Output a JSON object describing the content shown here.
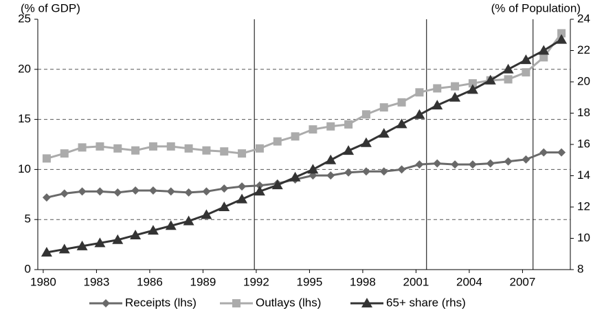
{
  "chart_data": {
    "type": "line",
    "y_label": "(% of GDP)",
    "y2_label": "(% of Population)",
    "x": [
      1980,
      1981,
      1982,
      1983,
      1984,
      1985,
      1986,
      1987,
      1988,
      1989,
      1990,
      1991,
      1992,
      1993,
      1994,
      1995,
      1996,
      1997,
      1998,
      1999,
      2000,
      2001,
      2002,
      2003,
      2004,
      2005,
      2006,
      2007,
      2008,
      2009
    ],
    "xlim": [
      1979.5,
      2009.5
    ],
    "xticks": [
      1980,
      1983,
      1986,
      1989,
      1992,
      1995,
      1998,
      2001,
      2004,
      2007
    ],
    "ylim": [
      0,
      25
    ],
    "yticks": [
      0,
      5,
      10,
      15,
      20,
      25
    ],
    "y2lim": [
      8,
      24
    ],
    "y2ticks": [
      8,
      10,
      12,
      14,
      16,
      18,
      20,
      22,
      24
    ],
    "grid": true,
    "vertical_lines": [
      1991.7,
      2001.4,
      2007.4
    ],
    "legend": "bottom",
    "series": [
      {
        "name": "Receipts (lhs)",
        "color": "#696969",
        "marker": "diamond",
        "values": [
          7.2,
          7.6,
          7.8,
          7.8,
          7.7,
          7.9,
          7.9,
          7.8,
          7.7,
          7.8,
          8.1,
          8.3,
          8.4,
          8.6,
          9.0,
          9.4,
          9.4,
          9.7,
          9.8,
          9.8,
          10.0,
          10.5,
          10.6,
          10.5,
          10.5,
          10.6,
          10.8,
          11.0,
          11.7,
          11.7
        ]
      },
      {
        "name": "Outlays (lhs)",
        "color": "#ababab",
        "marker": "square",
        "values": [
          11.1,
          11.6,
          12.2,
          12.3,
          12.1,
          11.9,
          12.3,
          12.3,
          12.1,
          11.9,
          11.8,
          11.6,
          12.1,
          12.8,
          13.3,
          14.0,
          14.3,
          14.5,
          15.5,
          16.2,
          16.7,
          17.7,
          18.1,
          18.3,
          18.6,
          18.9,
          19.0,
          19.7,
          21.2,
          23.6
        ]
      },
      {
        "name": "65+ share (rhs)",
        "color": "#333333",
        "marker": "triangle",
        "axis": "y2",
        "values": [
          9.1,
          9.3,
          9.5,
          9.7,
          9.9,
          10.2,
          10.5,
          10.8,
          11.1,
          11.5,
          12.0,
          12.5,
          13.0,
          13.4,
          13.9,
          14.4,
          15.0,
          15.6,
          16.1,
          16.7,
          17.3,
          17.9,
          18.5,
          19.0,
          19.5,
          20.1,
          20.8,
          21.4,
          22.0,
          22.7
        ]
      }
    ]
  }
}
